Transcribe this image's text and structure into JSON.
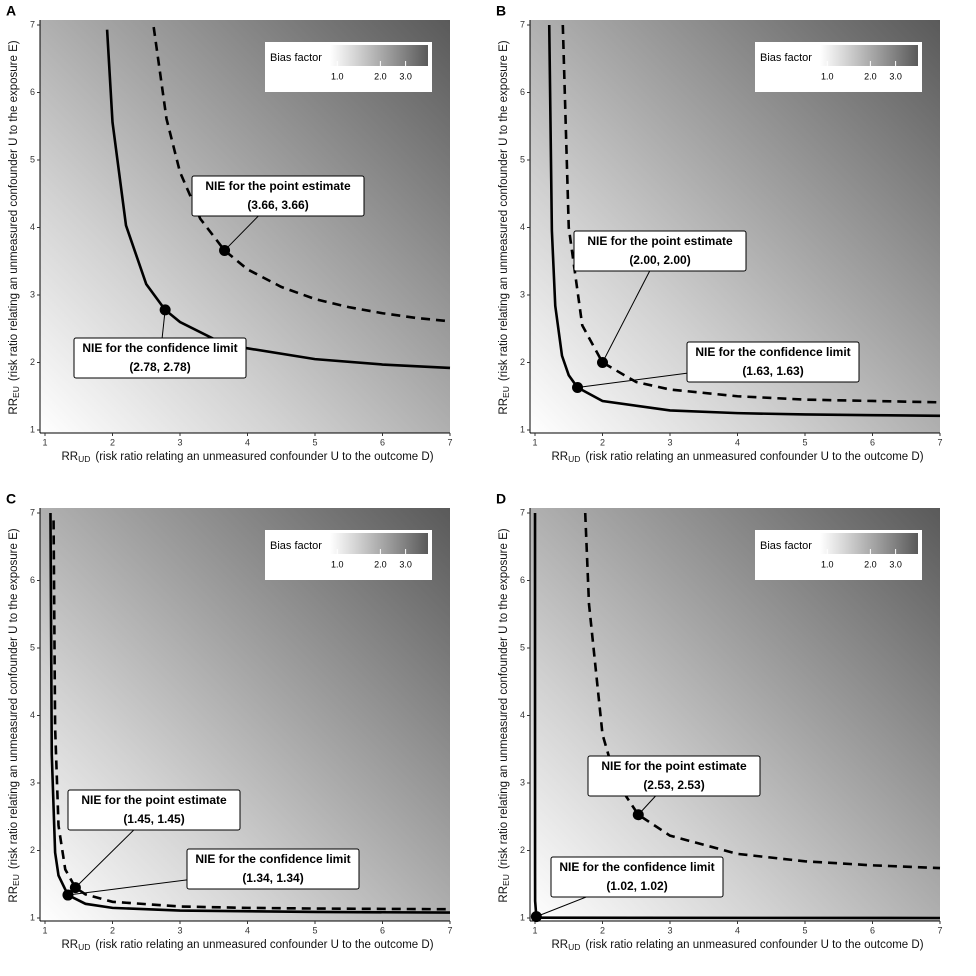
{
  "chart_data": [
    {
      "type": "line",
      "panel": "A",
      "x_label": {
        "main": "RR",
        "sub": "UD",
        "text": "(risk ratio relating an unmeasured confounder U to the outcome D)"
      },
      "y_label": {
        "main": "RR",
        "sub": "EU",
        "text": "(risk ratio relating an unmeasured confounder U to the exposure E)"
      },
      "xlim": [
        1,
        7
      ],
      "ylim": [
        1,
        7
      ],
      "xticks": [
        1,
        2,
        3,
        4,
        5,
        6,
        7
      ],
      "yticks": [
        1,
        2,
        3,
        4,
        5,
        6,
        7
      ],
      "series": [
        {
          "style": "solid",
          "color": "#000000",
          "x": [
            1.92,
            2,
            2.2,
            2.5,
            2.78,
            3,
            3.5,
            4,
            5,
            6,
            7
          ],
          "y": [
            6.93,
            5.56,
            4.03,
            3.16,
            2.78,
            2.6,
            2.35,
            2.21,
            2.05,
            1.97,
            1.92
          ]
        },
        {
          "style": "dashed",
          "color": "#000000",
          "x": [
            2.61,
            2.8,
            3,
            3.3,
            3.66,
            4,
            4.5,
            5,
            5.5,
            6,
            6.5,
            7
          ],
          "y": [
            6.97,
            5.61,
            4.82,
            4.13,
            3.66,
            3.38,
            3.12,
            2.94,
            2.82,
            2.73,
            2.66,
            2.61
          ]
        }
      ],
      "annotations": [
        {
          "label": "NIE for the point estimate",
          "value_label": "(3.66, 3.66)",
          "x": 3.66,
          "y": 3.66
        },
        {
          "label": "NIE for the confidence limit",
          "value_label": "(2.78, 2.78)",
          "x": 2.78,
          "y": 2.78
        }
      ],
      "fill_legend": {
        "title": "Bias factor",
        "log": true,
        "lim": [
          0.89,
          4.3
        ],
        "colors": [
          "#ffffff",
          "#5a5a5a"
        ],
        "ticks": [
          {
            "value": 1,
            "label": "1.0"
          },
          {
            "value": 2,
            "label": "2.0"
          },
          {
            "value": 3,
            "label": "3.0"
          }
        ]
      }
    },
    {
      "type": "line",
      "panel": "B",
      "x_label": {
        "main": "RR",
        "sub": "UD",
        "text": "(risk ratio relating an unmeasured confounder U to the outcome D)"
      },
      "y_label": {
        "main": "RR",
        "sub": "EU",
        "text": "(risk ratio relating an unmeasured confounder U to the exposure E)"
      },
      "xlim": [
        1,
        7
      ],
      "ylim": [
        1,
        7
      ],
      "xticks": [
        1,
        2,
        3,
        4,
        5,
        6,
        7
      ],
      "yticks": [
        1,
        2,
        3,
        4,
        5,
        6,
        7
      ],
      "series": [
        {
          "style": "solid",
          "color": "#000000",
          "x": [
            1.211,
            1.25,
            1.3,
            1.4,
            1.5,
            1.63,
            2,
            3,
            4,
            5,
            6,
            7
          ],
          "y": [
            7.0,
            3.95,
            2.84,
            2.1,
            1.81,
            1.63,
            1.43,
            1.29,
            1.25,
            1.23,
            1.22,
            1.21
          ]
        },
        {
          "style": "dashed",
          "color": "#000000",
          "x": [
            1.412,
            1.5,
            1.7,
            2,
            2.5,
            3,
            4,
            5,
            6,
            7
          ],
          "y": [
            7.0,
            4.0,
            2.55,
            2.0,
            1.71,
            1.6,
            1.5,
            1.45,
            1.43,
            1.41
          ]
        }
      ],
      "annotations": [
        {
          "label": "NIE for the point estimate",
          "value_label": "(2.00, 2.00)",
          "x": 2,
          "y": 2
        },
        {
          "label": "NIE for the confidence limit",
          "value_label": "(1.63, 1.63)",
          "x": 1.63,
          "y": 1.63
        }
      ],
      "fill_legend": {
        "title": "Bias factor",
        "log": true,
        "lim": [
          0.89,
          4.3
        ],
        "colors": [
          "#ffffff",
          "#5a5a5a"
        ],
        "ticks": [
          {
            "value": 1,
            "label": "1.0"
          },
          {
            "value": 2,
            "label": "2.0"
          },
          {
            "value": 3,
            "label": "3.0"
          }
        ]
      }
    },
    {
      "type": "line",
      "panel": "C",
      "x_label": {
        "main": "RR",
        "sub": "UD",
        "text": "(risk ratio relating an unmeasured confounder U to the outcome D)"
      },
      "y_label": {
        "main": "RR",
        "sub": "EU",
        "text": "(risk ratio relating an unmeasured confounder U to the exposure E)"
      },
      "xlim": [
        1,
        7
      ],
      "ylim": [
        1,
        7
      ],
      "xticks": [
        1,
        2,
        3,
        4,
        5,
        6,
        7
      ],
      "yticks": [
        1,
        2,
        3,
        4,
        5,
        6,
        7
      ],
      "series": [
        {
          "style": "solid",
          "color": "#000000",
          "x": [
            1.0812,
            1.1,
            1.15,
            1.2,
            1.34,
            1.6,
            2,
            3,
            5,
            7
          ],
          "y": [
            7.0,
            3.43,
            1.97,
            1.63,
            1.34,
            1.21,
            1.15,
            1.11,
            1.09,
            1.08
          ]
        },
        {
          "style": "dashed",
          "color": "#000000",
          "x": [
            1.127,
            1.15,
            1.2,
            1.3,
            1.45,
            1.6,
            2,
            3,
            4,
            5,
            7
          ],
          "y": [
            6.89,
            3.82,
            2.37,
            1.72,
            1.45,
            1.35,
            1.24,
            1.17,
            1.15,
            1.14,
            1.13
          ]
        }
      ],
      "annotations": [
        {
          "label": "NIE for the point estimate",
          "value_label": "(1.45, 1.45)",
          "x": 1.45,
          "y": 1.45
        },
        {
          "label": "NIE for the confidence limit",
          "value_label": "(1.34, 1.34)",
          "x": 1.34,
          "y": 1.34
        }
      ],
      "fill_legend": {
        "title": "Bias factor",
        "log": true,
        "lim": [
          0.89,
          4.3
        ],
        "colors": [
          "#ffffff",
          "#5a5a5a"
        ],
        "ticks": [
          {
            "value": 1,
            "label": "1.0"
          },
          {
            "value": 2,
            "label": "2.0"
          },
          {
            "value": 3,
            "label": "3.0"
          }
        ]
      }
    },
    {
      "type": "line",
      "panel": "D",
      "x_label": {
        "main": "RR",
        "sub": "UD",
        "text": "(risk ratio relating an unmeasured confounder U to the outcome D)"
      },
      "y_label": {
        "main": "RR",
        "sub": "EU",
        "text": "(risk ratio relating an unmeasured confounder U to the exposure E)"
      },
      "xlim": [
        1,
        7
      ],
      "ylim": [
        1,
        7
      ],
      "xticks": [
        1,
        2,
        3,
        4,
        5,
        6,
        7
      ],
      "yticks": [
        1,
        2,
        3,
        4,
        5,
        6,
        7
      ],
      "series": [
        {
          "style": "solid",
          "color": "#000000",
          "x": [
            1.00047,
            1.0005,
            1.001,
            1.002,
            1.02,
            1.1,
            7
          ],
          "y": [
            7.0,
            5.0,
            1.67,
            1.25,
            1.02,
            1.004,
            1.0001
          ]
        },
        {
          "style": "dashed",
          "color": "#000000",
          "x": [
            1.744,
            1.8,
            2,
            2.2,
            2.53,
            3,
            4,
            5,
            6,
            7
          ],
          "y": [
            7.0,
            5.65,
            3.72,
            3.03,
            2.53,
            2.22,
            1.95,
            1.84,
            1.78,
            1.74
          ]
        }
      ],
      "annotations": [
        {
          "label": "NIE for the point estimate",
          "value_label": "(2.53, 2.53)",
          "x": 2.53,
          "y": 2.53
        },
        {
          "label": "NIE for the confidence limit",
          "value_label": "(1.02, 1.02)",
          "x": 1.02,
          "y": 1.02
        }
      ],
      "fill_legend": {
        "title": "Bias factor",
        "log": true,
        "lim": [
          0.89,
          4.3
        ],
        "colors": [
          "#ffffff",
          "#5a5a5a"
        ],
        "ticks": [
          {
            "value": 1,
            "label": "1.0"
          },
          {
            "value": 2,
            "label": "2.0"
          },
          {
            "value": 3,
            "label": "3.0"
          }
        ]
      }
    }
  ]
}
